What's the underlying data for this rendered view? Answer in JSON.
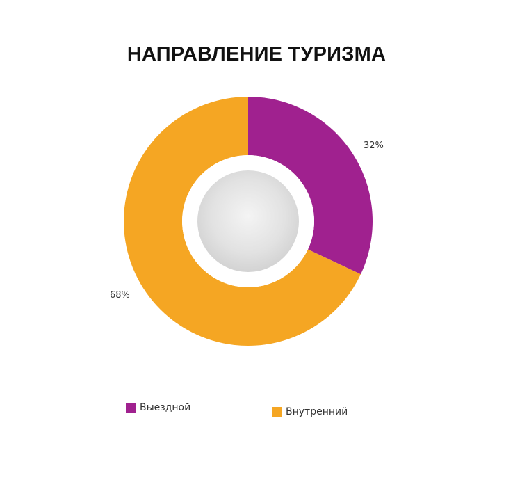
{
  "chart_data": {
    "type": "pie",
    "title": "НАПРАВЛЕНИЕ ТУРИЗМА",
    "donut": true,
    "legend_position": "bottom",
    "categories": [
      "Выездной",
      "Внутренний"
    ],
    "values": [
      32,
      68
    ],
    "data_labels": [
      "32%",
      "68%"
    ],
    "colors": [
      "#A0218F",
      "#F5A623"
    ]
  }
}
